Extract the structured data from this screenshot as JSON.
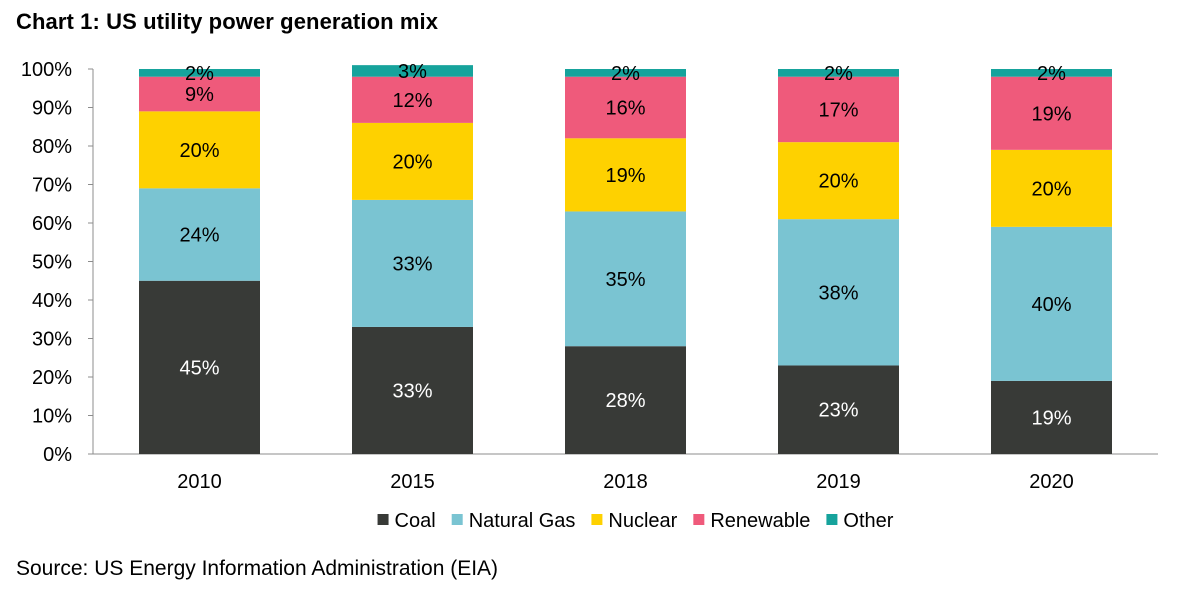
{
  "chart_data": {
    "type": "bar",
    "stacked": true,
    "title": "Chart 1: US utility power generation mix",
    "source": "Source: US Energy Information Administration (EIA)",
    "categories": [
      "2010",
      "2015",
      "2018",
      "2019",
      "2020"
    ],
    "ylim": [
      0,
      100
    ],
    "yticks": [
      "0%",
      "10%",
      "20%",
      "30%",
      "40%",
      "50%",
      "60%",
      "70%",
      "80%",
      "90%",
      "100%"
    ],
    "xlabel": "",
    "ylabel": "",
    "grid": false,
    "legend_position": "bottom",
    "series": [
      {
        "name": "Coal",
        "color": "#383a37",
        "label_color": "#ffffff",
        "values": [
          45,
          33,
          28,
          23,
          19
        ]
      },
      {
        "name": "Natural Gas",
        "color": "#7ac4d2",
        "label_color": "#000000",
        "values": [
          24,
          33,
          35,
          38,
          40
        ]
      },
      {
        "name": "Nuclear",
        "color": "#fed100",
        "label_color": "#000000",
        "values": [
          20,
          20,
          19,
          20,
          20
        ]
      },
      {
        "name": "Renewable",
        "color": "#ef5a7b",
        "label_color": "#000000",
        "values": [
          9,
          12,
          16,
          17,
          19
        ]
      },
      {
        "name": "Other",
        "color": "#16a39c",
        "label_color": "#000000",
        "values": [
          2,
          3,
          2,
          2,
          2
        ]
      }
    ],
    "value_labels": [
      [
        "45%",
        "33%",
        "28%",
        "23%",
        "19%"
      ],
      [
        "24%",
        "33%",
        "35%",
        "38%",
        "40%"
      ],
      [
        "20%",
        "20%",
        "19%",
        "20%",
        "20%"
      ],
      [
        "9%",
        "12%",
        "16%",
        "17%",
        "19%"
      ],
      [
        "2%",
        "3%",
        "2%",
        "2%",
        "2%"
      ]
    ]
  }
}
